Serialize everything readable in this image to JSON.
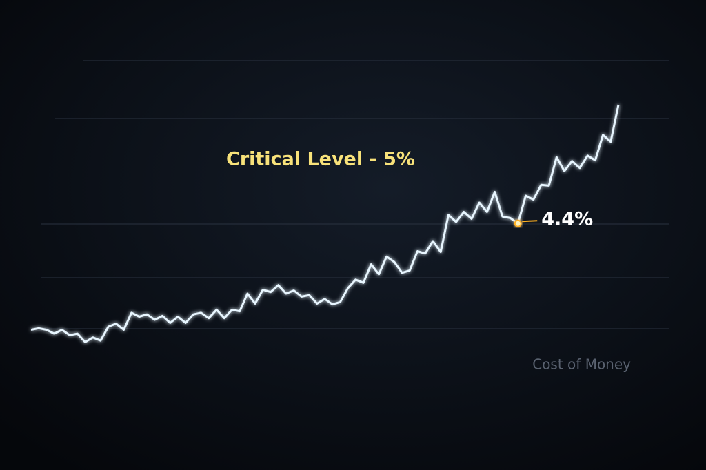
{
  "chart_data": {
    "type": "line",
    "series": [
      {
        "name": "Cost of Money",
        "color": "#e8f6ff",
        "values": [
          3.02,
          3.04,
          3.02,
          2.97,
          3.02,
          2.95,
          2.97,
          2.86,
          2.92,
          2.88,
          3.06,
          3.1,
          3.02,
          3.24,
          3.19,
          3.22,
          3.15,
          3.2,
          3.11,
          3.19,
          3.11,
          3.22,
          3.24,
          3.17,
          3.28,
          3.17,
          3.28,
          3.26,
          3.49,
          3.36,
          3.54,
          3.51,
          3.6,
          3.49,
          3.53,
          3.45,
          3.47,
          3.36,
          3.42,
          3.35,
          3.38,
          3.56,
          3.67,
          3.63,
          3.87,
          3.74,
          3.97,
          3.9,
          3.76,
          3.79,
          4.04,
          4.01,
          4.17,
          4.03,
          4.51,
          4.42,
          4.55,
          4.46,
          4.67,
          4.55,
          4.81,
          4.49,
          4.47,
          4.4,
          4.76,
          4.71,
          4.9,
          4.89,
          5.26,
          5.08,
          5.21,
          5.12,
          5.28,
          5.22,
          5.55,
          5.46,
          5.94
        ]
      }
    ],
    "threshold": {
      "label": "Critical Level - 5%",
      "value": 5,
      "color": "#ff2a12"
    },
    "annotation": {
      "label": "4.4%",
      "value": 4.4,
      "color": "#ffb020"
    },
    "ylim": [
      1.2,
      7.3
    ]
  }
}
